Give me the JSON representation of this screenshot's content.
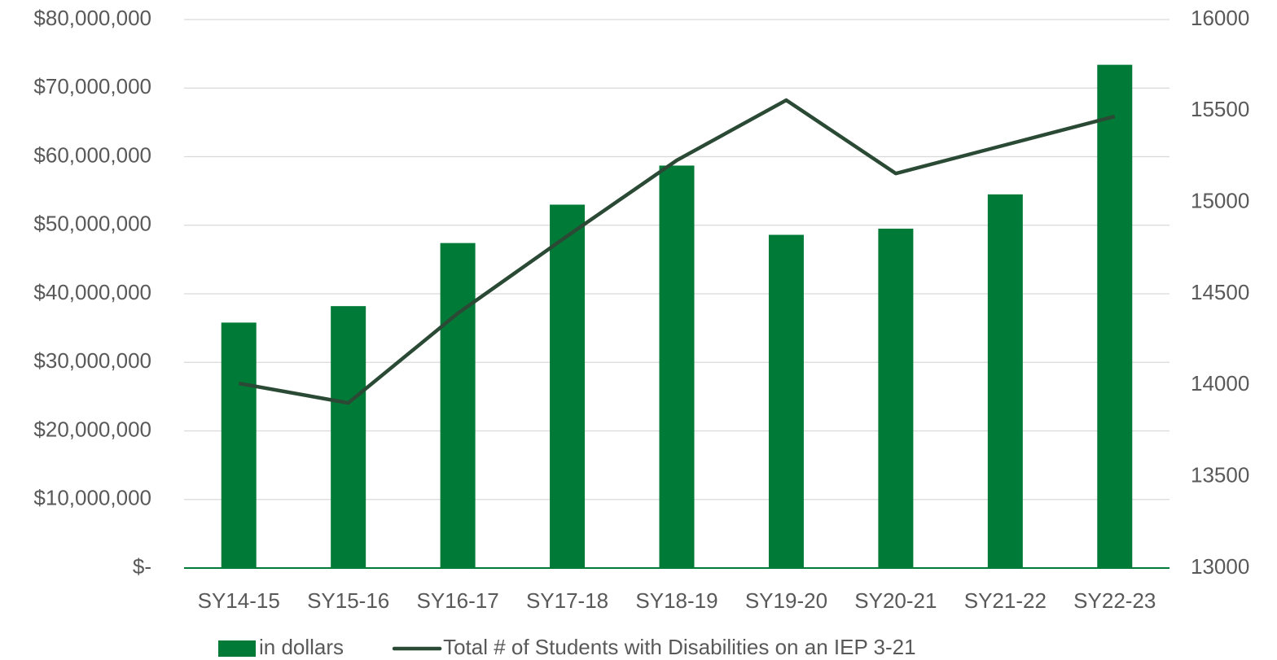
{
  "chart_data": {
    "type": "bar_line",
    "categories": [
      "SY14-15",
      "SY15-16",
      "SY16-17",
      "SY17-18",
      "SY18-19",
      "SY19-20",
      "SY20-21",
      "SY21-22",
      "SY22-23"
    ],
    "series": [
      {
        "name": "in dollars",
        "type": "bar",
        "color": "#007a37",
        "axis": "y",
        "values": [
          35800000,
          38200000,
          47400000,
          53000000,
          58700000,
          48600000,
          49500000,
          54500000,
          73400000
        ]
      },
      {
        "name": "Total # of Students with Disabilities on an IEP 3-21",
        "type": "line",
        "color": "#2b4a35",
        "axis": "y2",
        "values": [
          14010,
          13903,
          14393,
          14816,
          15230,
          15559,
          15158,
          15314,
          15470
        ]
      }
    ],
    "ylim": [
      0,
      80000000
    ],
    "yticks": [
      {
        "value": 0,
        "label": "$-"
      },
      {
        "value": 10000000,
        "label": "$10,000,000"
      },
      {
        "value": 20000000,
        "label": "$20,000,000"
      },
      {
        "value": 30000000,
        "label": "$30,000,000"
      },
      {
        "value": 40000000,
        "label": "$40,000,000"
      },
      {
        "value": 50000000,
        "label": "$50,000,000"
      },
      {
        "value": 60000000,
        "label": "$60,000,000"
      },
      {
        "value": 70000000,
        "label": "$70,000,000"
      },
      {
        "value": 80000000,
        "label": "$80,000,000"
      }
    ],
    "y2lim": [
      13000,
      16000
    ],
    "y2ticks": [
      13000,
      13500,
      14000,
      14500,
      15000,
      15500,
      16000
    ],
    "grid": true,
    "legend": "bottom"
  }
}
